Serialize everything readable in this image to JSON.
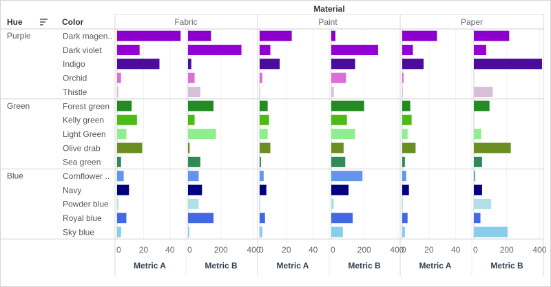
{
  "chart_data": {
    "type": "bar",
    "title": "",
    "column_header": "Material",
    "row_headers": [
      "Hue",
      "Color"
    ],
    "materials": [
      "Fabric",
      "Paint",
      "Paper"
    ],
    "metrics": [
      "Metric A",
      "Metric B"
    ],
    "axes": {
      "Metric A": {
        "ticks": [
          0,
          20,
          40
        ],
        "xlim": [
          0,
          51
        ]
      },
      "Metric B": {
        "ticks": [
          0,
          200,
          400
        ],
        "xlim": [
          0,
          415
        ]
      }
    },
    "hues": [
      {
        "name": "Purple",
        "colors": [
          {
            "label": "Dark magen..",
            "color": "#8B00CC"
          },
          {
            "label": "Dark violet",
            "color": "#9400D3"
          },
          {
            "label": "Indigo",
            "color": "#4B0C9E"
          },
          {
            "label": "Orchid",
            "color": "#DA70D6"
          },
          {
            "label": "Thistle",
            "color": "#D8BFD8"
          }
        ]
      },
      {
        "name": "Green",
        "colors": [
          {
            "label": "Forest green",
            "color": "#228B22"
          },
          {
            "label": "Kelly green",
            "color": "#4CBB17"
          },
          {
            "label": "Light Green",
            "color": "#90EE90"
          },
          {
            "label": "Olive drab",
            "color": "#6B8E23"
          },
          {
            "label": "Sea green",
            "color": "#2E8B57"
          }
        ]
      },
      {
        "name": "Blue",
        "colors": [
          {
            "label": "Cornflower ..",
            "color": "#6495ED"
          },
          {
            "label": "Navy",
            "color": "#000080"
          },
          {
            "label": "Powder blue",
            "color": "#B0E0E6"
          },
          {
            "label": "Royal blue",
            "color": "#4169E1"
          },
          {
            "label": "Sky blue",
            "color": "#87CEEB"
          }
        ]
      }
    ],
    "series": [
      {
        "material": "Fabric",
        "metric": "Metric A",
        "values": [
          48,
          17,
          32,
          3,
          1,
          11,
          15,
          7,
          19,
          3,
          5,
          9,
          1,
          7,
          3
        ]
      },
      {
        "material": "Fabric",
        "metric": "Metric B",
        "values": [
          140,
          325,
          20,
          40,
          75,
          155,
          40,
          170,
          10,
          75,
          65,
          85,
          65,
          155,
          8
        ]
      },
      {
        "material": "Paint",
        "metric": "Metric A",
        "values": [
          24,
          8,
          15,
          2,
          0.5,
          6,
          7,
          6,
          8,
          1,
          3,
          5,
          0.5,
          4,
          2
        ]
      },
      {
        "material": "Paint",
        "metric": "Metric B",
        "values": [
          25,
          285,
          145,
          90,
          15,
          200,
          95,
          145,
          75,
          85,
          190,
          105,
          15,
          130,
          70
        ]
      },
      {
        "material": "Paper",
        "metric": "Metric A",
        "values": [
          26,
          8,
          16,
          1,
          0.5,
          6,
          7,
          4,
          10,
          2,
          3,
          5,
          0.5,
          4,
          2
        ]
      },
      {
        "material": "Paper",
        "metric": "Metric B",
        "values": [
          215,
          75,
          415,
          0,
          115,
          95,
          0,
          45,
          225,
          50,
          8,
          50,
          105,
          40,
          205
        ]
      }
    ]
  },
  "icons": {
    "sort": "sort-descending-icon"
  }
}
